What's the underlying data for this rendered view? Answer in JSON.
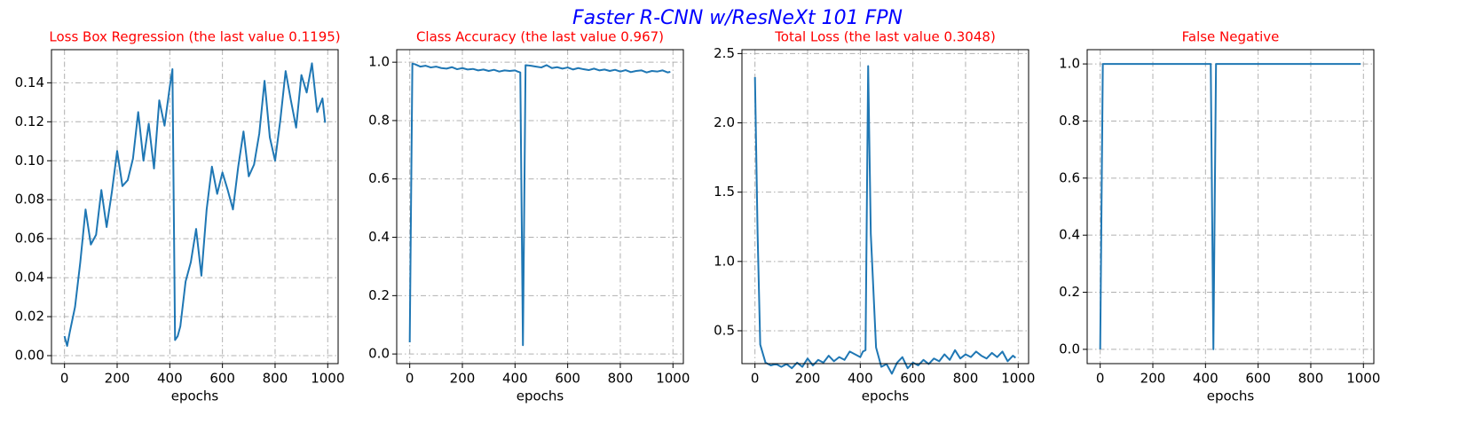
{
  "title": "Faster R-CNN w/ResNeXt 101 FPN",
  "chart_data": [
    {
      "type": "line",
      "title": "Loss Box Regression  (the last value 0.1195)",
      "xlabel": "epochs",
      "color": "#1f77b4",
      "grid": true,
      "x": [
        0,
        10,
        20,
        40,
        60,
        80,
        100,
        120,
        140,
        160,
        180,
        200,
        220,
        240,
        260,
        280,
        300,
        320,
        340,
        360,
        380,
        400,
        410,
        420,
        430,
        440,
        460,
        480,
        500,
        520,
        540,
        560,
        580,
        600,
        620,
        640,
        660,
        680,
        700,
        720,
        740,
        760,
        780,
        800,
        820,
        840,
        860,
        880,
        900,
        920,
        940,
        960,
        980,
        990
      ],
      "values": [
        0.01,
        0.005,
        0.012,
        0.025,
        0.048,
        0.075,
        0.057,
        0.062,
        0.085,
        0.066,
        0.084,
        0.105,
        0.087,
        0.09,
        0.101,
        0.125,
        0.1,
        0.119,
        0.096,
        0.131,
        0.118,
        0.138,
        0.147,
        0.008,
        0.01,
        0.015,
        0.038,
        0.048,
        0.065,
        0.041,
        0.075,
        0.097,
        0.083,
        0.094,
        0.085,
        0.075,
        0.097,
        0.115,
        0.092,
        0.098,
        0.114,
        0.141,
        0.112,
        0.1,
        0.121,
        0.146,
        0.131,
        0.117,
        0.144,
        0.135,
        0.15,
        0.125,
        0.132,
        0.1195
      ],
      "xlim": [
        -49.5,
        1039.5
      ],
      "xticks": [
        0,
        200,
        400,
        600,
        800,
        1000
      ],
      "ylim": [
        -0.0041,
        0.157
      ],
      "yticks": [
        {
          "value": 0,
          "label": "0.00"
        },
        {
          "value": 0.02,
          "label": "0.02"
        },
        {
          "value": 0.04,
          "label": "0.04"
        },
        {
          "value": 0.06,
          "label": "0.06"
        },
        {
          "value": 0.08,
          "label": "0.08"
        },
        {
          "value": 0.1,
          "label": "0.10"
        },
        {
          "value": 0.12,
          "label": "0.12"
        },
        {
          "value": 0.14,
          "label": "0.14"
        }
      ]
    },
    {
      "type": "line",
      "title": "Class Accuracy  (the last value 0.967)",
      "xlabel": "epochs",
      "color": "#1f77b4",
      "grid": true,
      "x": [
        0,
        10,
        20,
        40,
        60,
        80,
        100,
        120,
        140,
        160,
        180,
        200,
        220,
        240,
        260,
        280,
        300,
        320,
        340,
        360,
        380,
        400,
        410,
        420,
        430,
        440,
        460,
        480,
        500,
        520,
        540,
        560,
        580,
        600,
        620,
        640,
        660,
        680,
        700,
        720,
        740,
        760,
        780,
        800,
        820,
        840,
        860,
        880,
        900,
        920,
        940,
        960,
        980,
        990
      ],
      "values": [
        0.04,
        0.995,
        0.993,
        0.985,
        0.988,
        0.982,
        0.985,
        0.98,
        0.978,
        0.983,
        0.976,
        0.98,
        0.975,
        0.977,
        0.972,
        0.975,
        0.97,
        0.974,
        0.968,
        0.972,
        0.97,
        0.972,
        0.968,
        0.965,
        0.03,
        0.99,
        0.988,
        0.985,
        0.982,
        0.99,
        0.98,
        0.983,
        0.978,
        0.982,
        0.975,
        0.98,
        0.976,
        0.973,
        0.978,
        0.972,
        0.975,
        0.97,
        0.974,
        0.968,
        0.973,
        0.966,
        0.97,
        0.972,
        0.965,
        0.97,
        0.968,
        0.972,
        0.965,
        0.967
      ],
      "xlim": [
        -49.5,
        1039.5
      ],
      "xticks": [
        0,
        200,
        400,
        600,
        800,
        1000
      ],
      "ylim": [
        -0.033,
        1.043
      ],
      "yticks": [
        {
          "value": 0,
          "label": "0.0"
        },
        0.2,
        0.4,
        0.6,
        0.8,
        {
          "value": 1,
          "label": "1.0"
        }
      ]
    },
    {
      "type": "line",
      "title": "Total Loss  (the last value 0.3048)",
      "xlabel": "epochs",
      "color": "#1f77b4",
      "grid": true,
      "x": [
        0,
        10,
        20,
        40,
        60,
        80,
        100,
        120,
        140,
        160,
        180,
        200,
        220,
        240,
        260,
        280,
        300,
        320,
        340,
        360,
        380,
        400,
        410,
        420,
        430,
        440,
        460,
        480,
        500,
        520,
        540,
        560,
        580,
        600,
        620,
        640,
        660,
        680,
        700,
        720,
        740,
        760,
        780,
        800,
        820,
        840,
        860,
        880,
        900,
        920,
        940,
        960,
        980,
        990
      ],
      "values": [
        2.33,
        1.2,
        0.4,
        0.27,
        0.25,
        0.26,
        0.24,
        0.26,
        0.23,
        0.27,
        0.24,
        0.3,
        0.25,
        0.29,
        0.27,
        0.32,
        0.28,
        0.31,
        0.29,
        0.35,
        0.33,
        0.31,
        0.35,
        0.36,
        2.41,
        1.2,
        0.38,
        0.24,
        0.26,
        0.19,
        0.27,
        0.31,
        0.23,
        0.27,
        0.25,
        0.29,
        0.26,
        0.3,
        0.28,
        0.33,
        0.29,
        0.36,
        0.3,
        0.33,
        0.31,
        0.35,
        0.32,
        0.3,
        0.34,
        0.31,
        0.35,
        0.28,
        0.32,
        0.3048
      ],
      "xlim": [
        -49.5,
        1039.5
      ],
      "xticks": [
        0,
        200,
        400,
        600,
        800,
        1000
      ],
      "ylim": [
        0.263,
        2.528
      ],
      "yticks": [
        0.5,
        {
          "value": 1,
          "label": "1.0"
        },
        1.5,
        {
          "value": 2,
          "label": "2.0"
        },
        2.5
      ]
    },
    {
      "type": "line",
      "title": "False Negative",
      "xlabel": "epochs",
      "color": "#1f77b4",
      "grid": true,
      "x": [
        0,
        10,
        20,
        40,
        60,
        80,
        100,
        120,
        140,
        160,
        180,
        200,
        220,
        240,
        260,
        280,
        300,
        320,
        340,
        360,
        380,
        400,
        410,
        420,
        430,
        440,
        460,
        480,
        500,
        520,
        540,
        560,
        580,
        600,
        620,
        640,
        660,
        680,
        700,
        720,
        740,
        760,
        780,
        800,
        820,
        840,
        860,
        880,
        900,
        920,
        940,
        960,
        980,
        990
      ],
      "values": [
        0,
        1,
        1,
        1,
        1,
        1,
        1,
        1,
        1,
        1,
        1,
        1,
        1,
        1,
        1,
        1,
        1,
        1,
        1,
        1,
        1,
        1,
        1,
        1,
        0,
        1,
        1,
        1,
        1,
        1,
        1,
        1,
        1,
        1,
        1,
        1,
        1,
        1,
        1,
        1,
        1,
        1,
        1,
        1,
        1,
        1,
        1,
        1,
        1,
        1,
        1,
        1,
        1,
        1
      ],
      "xlim": [
        -49.5,
        1039.5
      ],
      "xticks": [
        0,
        200,
        400,
        600,
        800,
        1000
      ],
      "ylim": [
        -0.05,
        1.05
      ],
      "yticks": [
        {
          "value": 0,
          "label": "0.0"
        },
        0.2,
        0.4,
        0.6,
        0.8,
        {
          "value": 1,
          "label": "1.0"
        }
      ]
    }
  ]
}
